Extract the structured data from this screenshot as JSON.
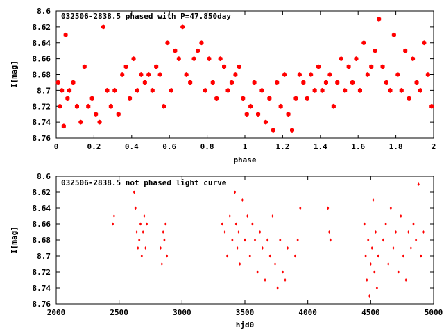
{
  "colors": {
    "points": "#ff0000",
    "axes": "#000000",
    "background": "#ffffff"
  },
  "chart_data": [
    {
      "type": "scatter",
      "title": "032506-2838.5 phased with P=47.850day",
      "xlabel": "phase",
      "ylabel": "I[mag]",
      "xlim": [
        0,
        2
      ],
      "ylim": [
        8.76,
        8.6
      ],
      "y_inverted": true,
      "grid": false,
      "marker": "filled-hexagon",
      "xticks": [
        "0",
        "0.2",
        "0.4",
        "0.6",
        "0.8",
        "1",
        "1.2",
        "1.4",
        "1.6",
        "1.8",
        "2"
      ],
      "yticks": [
        "8.6",
        "8.62",
        "8.64",
        "8.66",
        "8.68",
        "8.7",
        "8.72",
        "8.74",
        "8.76"
      ],
      "x": [
        0.01,
        0.02,
        0.03,
        0.04,
        0.05,
        0.06,
        0.07,
        0.09,
        0.11,
        0.13,
        0.15,
        0.17,
        0.19,
        0.21,
        0.23,
        0.25,
        0.27,
        0.29,
        0.31,
        0.33,
        0.35,
        0.37,
        0.39,
        0.41,
        0.43,
        0.45,
        0.47,
        0.49,
        0.51,
        0.53,
        0.55,
        0.57,
        0.59,
        0.61,
        0.63,
        0.65,
        0.67,
        0.69,
        0.71,
        0.73,
        0.75,
        0.77,
        0.79,
        0.81,
        0.83,
        0.85,
        0.87,
        0.89,
        0.91,
        0.93,
        0.95,
        0.97,
        0.99,
        1.01,
        1.03,
        1.05,
        1.07,
        1.09,
        1.11,
        1.13,
        1.15,
        1.17,
        1.19,
        1.21,
        1.23,
        1.25,
        1.27,
        1.29,
        1.31,
        1.33,
        1.35,
        1.37,
        1.39,
        1.41,
        1.43,
        1.45,
        1.47,
        1.49,
        1.51,
        1.53,
        1.55,
        1.57,
        1.59,
        1.61,
        1.63,
        1.65,
        1.67,
        1.69,
        1.71,
        1.73,
        1.75,
        1.77,
        1.79,
        1.81,
        1.83,
        1.85,
        1.87,
        1.89,
        1.91,
        1.93,
        1.95,
        1.97,
        1.99
      ],
      "y": [
        8.69,
        8.72,
        8.7,
        8.745,
        8.63,
        8.71,
        8.7,
        8.69,
        8.72,
        8.74,
        8.67,
        8.72,
        8.71,
        8.73,
        8.74,
        8.62,
        8.7,
        8.72,
        8.7,
        8.73,
        8.68,
        8.67,
        8.71,
        8.66,
        8.7,
        8.68,
        8.69,
        8.68,
        8.7,
        8.67,
        8.68,
        8.72,
        8.64,
        8.7,
        8.65,
        8.66,
        8.62,
        8.68,
        8.69,
        8.66,
        8.65,
        8.64,
        8.7,
        8.66,
        8.69,
        8.71,
        8.66,
        8.67,
        8.7,
        8.69,
        8.68,
        8.67,
        8.71,
        8.73,
        8.72,
        8.69,
        8.73,
        8.7,
        8.74,
        8.71,
        8.75,
        8.69,
        8.72,
        8.68,
        8.73,
        8.75,
        8.71,
        8.68,
        8.69,
        8.71,
        8.68,
        8.7,
        8.67,
        8.7,
        8.69,
        8.68,
        8.72,
        8.69,
        8.66,
        8.7,
        8.67,
        8.69,
        8.66,
        8.7,
        8.64,
        8.68,
        8.67,
        8.65,
        8.61,
        8.67,
        8.69,
        8.7,
        8.63,
        8.68,
        8.7,
        8.65,
        8.71,
        8.66,
        8.69,
        8.7,
        8.64,
        8.68,
        8.72
      ]
    },
    {
      "type": "scatter",
      "title": "032506-2838.5 not phased light curve",
      "xlabel": "hjd0",
      "ylabel": "I[mag]",
      "xlim": [
        2000,
        5000
      ],
      "ylim": [
        8.76,
        8.6
      ],
      "y_inverted": true,
      "grid": false,
      "marker": "small-diamond",
      "xticks": [
        "2000",
        "2500",
        "3000",
        "3500",
        "4000",
        "4500",
        "5000"
      ],
      "yticks": [
        "8.6",
        "8.62",
        "8.64",
        "8.66",
        "8.68",
        "8.7",
        "8.72",
        "8.74",
        "8.76"
      ],
      "x": [
        2450,
        2460,
        2620,
        2630,
        2640,
        2650,
        2660,
        2670,
        2680,
        2690,
        2700,
        2710,
        2720,
        2830,
        2840,
        2850,
        2860,
        2870,
        2880,
        3320,
        3340,
        3360,
        3380,
        3400,
        3420,
        3430,
        3440,
        3450,
        3460,
        3480,
        3500,
        3520,
        3540,
        3560,
        3580,
        3600,
        3620,
        3640,
        3660,
        3680,
        3700,
        3720,
        3740,
        3760,
        3780,
        3800,
        3820,
        3840,
        3900,
        3920,
        3940,
        4160,
        4170,
        4180,
        4450,
        4460,
        4470,
        4480,
        4490,
        4500,
        4510,
        4520,
        4530,
        4540,
        4550,
        4560,
        4600,
        4620,
        4640,
        4660,
        4680,
        4700,
        4720,
        4740,
        4760,
        4780,
        4800,
        4820,
        4840,
        4860,
        4880,
        4900,
        4920
      ],
      "y": [
        8.66,
        8.65,
        8.62,
        8.64,
        8.67,
        8.69,
        8.68,
        8.66,
        8.7,
        8.67,
        8.65,
        8.69,
        8.66,
        8.69,
        8.71,
        8.67,
        8.68,
        8.66,
        8.7,
        8.66,
        8.67,
        8.7,
        8.65,
        8.68,
        8.62,
        8.66,
        8.69,
        8.67,
        8.71,
        8.63,
        8.68,
        8.65,
        8.7,
        8.66,
        8.68,
        8.72,
        8.67,
        8.69,
        8.73,
        8.68,
        8.7,
        8.65,
        8.71,
        8.74,
        8.68,
        8.72,
        8.73,
        8.69,
        8.7,
        8.68,
        8.64,
        8.64,
        8.67,
        8.68,
        8.66,
        8.7,
        8.73,
        8.68,
        8.75,
        8.71,
        8.69,
        8.63,
        8.72,
        8.67,
        8.74,
        8.7,
        8.68,
        8.66,
        8.71,
        8.64,
        8.69,
        8.67,
        8.72,
        8.65,
        8.7,
        8.73,
        8.67,
        8.69,
        8.66,
        8.68,
        8.61,
        8.7,
        8.67
      ]
    }
  ]
}
